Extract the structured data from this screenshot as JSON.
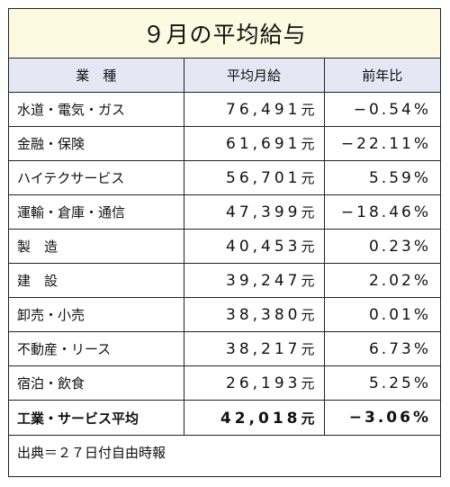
{
  "title": "９月の平均給与",
  "headers": {
    "sector": "業　種",
    "avg_salary": "平均月給",
    "yoy": "前年比"
  },
  "rows": [
    {
      "sector": "水道・電気・ガス",
      "salary": "76,491",
      "unit": "元",
      "yoy": "−0.54%"
    },
    {
      "sector": "金融・保険",
      "salary": "61,691",
      "unit": "元",
      "yoy": "−22.11%"
    },
    {
      "sector": "ハイテクサービス",
      "salary": "56,701",
      "unit": "元",
      "yoy": "5.59%"
    },
    {
      "sector": "運輸・倉庫・通信",
      "salary": "47,399",
      "unit": "元",
      "yoy": "−18.46%"
    },
    {
      "sector": "製　造",
      "salary": "40,453",
      "unit": "元",
      "yoy": "0.23%"
    },
    {
      "sector": "建　設",
      "salary": "39,247",
      "unit": "元",
      "yoy": "2.02%"
    },
    {
      "sector": "卸売・小売",
      "salary": "38,380",
      "unit": "元",
      "yoy": "0.01%"
    },
    {
      "sector": "不動産・リース",
      "salary": "38,217",
      "unit": "元",
      "yoy": "6.73%"
    },
    {
      "sector": "宿泊・飲食",
      "salary": "26,193",
      "unit": "元",
      "yoy": "5.25%"
    }
  ],
  "total": {
    "sector": "工業・サービス平均",
    "salary": "42,018",
    "unit": "元",
    "yoy": "−3.06%"
  },
  "source": "出典＝２７日付自由時報",
  "colors": {
    "title_bg": "#fcfbe2",
    "header_bg": "#e6e6f5",
    "border": "#222222"
  }
}
